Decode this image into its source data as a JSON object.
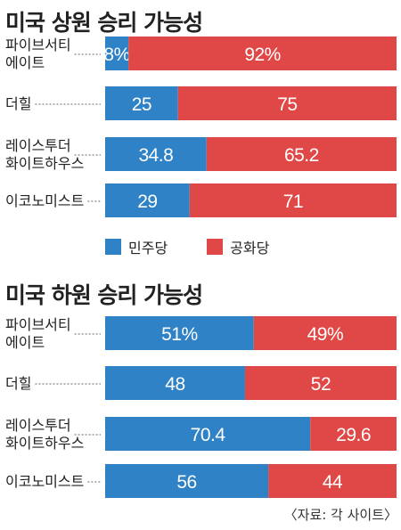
{
  "chart_data": [
    {
      "type": "bar",
      "stacked": true,
      "orientation": "horizontal",
      "title": "미국 상원 승리 가능성",
      "categories": [
        "파이브서티\n에이트",
        "더힐",
        "레이스투더\n화이트하우스",
        "이코노미스트"
      ],
      "series": [
        {
          "name": "민주당",
          "values": [
            8,
            25,
            34.8,
            29
          ],
          "labels": [
            "8%",
            "25",
            "34.8",
            "29"
          ]
        },
        {
          "name": "공화당",
          "values": [
            92,
            75,
            65.2,
            71
          ],
          "labels": [
            "92%",
            "75",
            "65.2",
            "71"
          ]
        }
      ],
      "xlim": [
        0,
        100
      ]
    },
    {
      "type": "bar",
      "stacked": true,
      "orientation": "horizontal",
      "title": "미국 하원 승리 가능성",
      "categories": [
        "파이브서티\n에이트",
        "더힐",
        "레이스투더\n화이트하우스",
        "이코노미스트"
      ],
      "series": [
        {
          "name": "민주당",
          "values": [
            51,
            48,
            70.4,
            56
          ],
          "labels": [
            "51%",
            "48",
            "70.4",
            "56"
          ]
        },
        {
          "name": "공화당",
          "values": [
            49,
            52,
            29.6,
            44
          ],
          "labels": [
            "49%",
            "52",
            "29.6",
            "44"
          ]
        }
      ],
      "xlim": [
        0,
        100
      ]
    }
  ],
  "legend": {
    "democrat": "민주당",
    "republican": "공화당"
  },
  "colors": {
    "democrat": "#2f82c6",
    "republican": "#e04847",
    "leader": "#666666"
  },
  "source": "〈자료: 각 사이트〉"
}
